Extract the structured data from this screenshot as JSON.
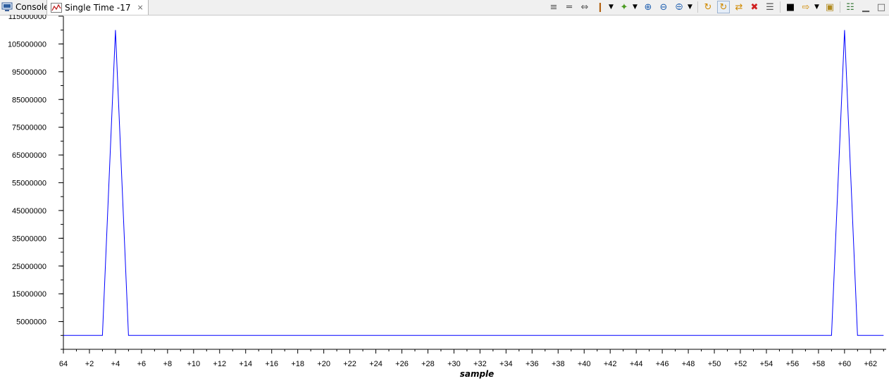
{
  "tabs": {
    "console_label": "Console",
    "single_label": "Single Time -17"
  },
  "toolbar": {
    "icons": [
      "columns-icon",
      "align-center-icon",
      "fit-width-icon",
      "stack-icon",
      "dropdown",
      "add-star-icon",
      "dropdown",
      "zoom-in-icon",
      "zoom-out-icon",
      "zoom-fit-icon",
      "dropdown",
      "refresh-icon",
      "refresh-auto-icon",
      "sync-icon",
      "delete-icon",
      "properties-icon",
      "binoculars-icon",
      "trace-icon",
      "dropdown",
      "lock-icon",
      "list-icon",
      "minimize-icon",
      "maximize-icon"
    ]
  },
  "colors": {
    "series": "#0000ff",
    "axis": "#000000"
  },
  "chart_data": {
    "type": "line",
    "title": "",
    "xlabel": "sample",
    "ylabel": "",
    "x": [
      0,
      1,
      2,
      3,
      4,
      5,
      6,
      7,
      8,
      9,
      10,
      11,
      12,
      13,
      14,
      15,
      16,
      17,
      18,
      19,
      20,
      21,
      22,
      23,
      24,
      25,
      26,
      27,
      28,
      29,
      30,
      31,
      32,
      33,
      34,
      35,
      36,
      37,
      38,
      39,
      40,
      41,
      42,
      43,
      44,
      45,
      46,
      47,
      48,
      49,
      50,
      51,
      52,
      53,
      54,
      55,
      56,
      57,
      58,
      59,
      60,
      61,
      62,
      63
    ],
    "series": [
      {
        "values": [
          0,
          0,
          0,
          0,
          110000000,
          0,
          0,
          0,
          0,
          0,
          0,
          0,
          0,
          0,
          0,
          0,
          0,
          0,
          0,
          0,
          0,
          0,
          0,
          0,
          0,
          0,
          0,
          0,
          0,
          0,
          0,
          0,
          0,
          0,
          0,
          0,
          0,
          0,
          0,
          0,
          0,
          0,
          0,
          0,
          0,
          0,
          0,
          0,
          0,
          0,
          0,
          0,
          0,
          0,
          0,
          0,
          0,
          0,
          0,
          0,
          110000000,
          0,
          0,
          0
        ]
      }
    ],
    "xlim": [
      0,
      63.2
    ],
    "ylim": [
      -5000000,
      115000000
    ],
    "xtick_values": [
      0,
      2,
      4,
      6,
      8,
      10,
      12,
      14,
      16,
      18,
      20,
      22,
      24,
      26,
      28,
      30,
      32,
      34,
      36,
      38,
      40,
      42,
      44,
      46,
      48,
      50,
      52,
      54,
      56,
      58,
      60,
      62
    ],
    "xtick_labels": [
      "64",
      "+2",
      "+4",
      "+6",
      "+8",
      "+10",
      "+12",
      "+14",
      "+16",
      "+18",
      "+20",
      "+22",
      "+24",
      "+26",
      "+28",
      "+30",
      "+32",
      "+34",
      "+36",
      "+38",
      "+40",
      "+42",
      "+44",
      "+46",
      "+48",
      "+50",
      "+52",
      "+54",
      "+56",
      "+58",
      "+60",
      "+62"
    ],
    "ytick_values": [
      5000000,
      15000000,
      25000000,
      35000000,
      45000000,
      55000000,
      65000000,
      75000000,
      85000000,
      95000000,
      105000000,
      115000000
    ],
    "ytick_labels": [
      "5000000",
      "15000000",
      "25000000",
      "35000000",
      "45000000",
      "55000000",
      "65000000",
      "75000000",
      "85000000",
      "95000000",
      "105000000",
      "115000000"
    ],
    "grid": false,
    "legend": "none"
  }
}
